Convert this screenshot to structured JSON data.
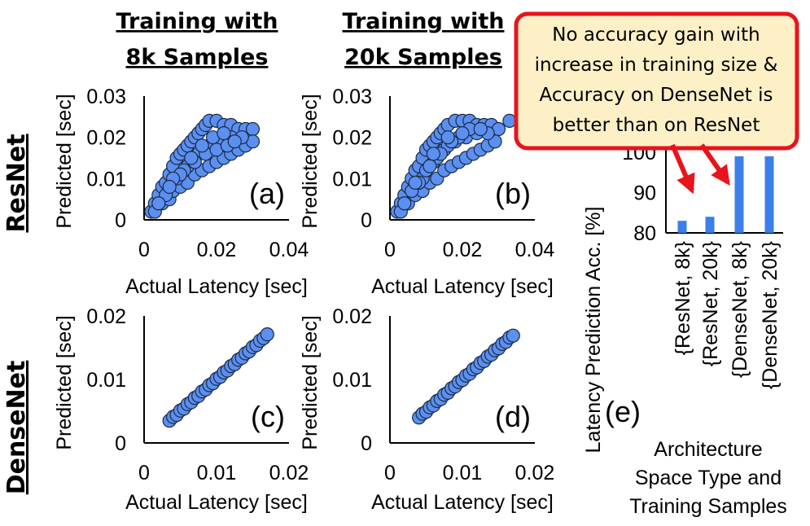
{
  "headers": {
    "col1": [
      "Training with",
      "8k Samples"
    ],
    "col2": [
      "Training with",
      "20k Samples"
    ]
  },
  "row_labels": [
    "ResNet",
    "DenseNet"
  ],
  "callout": {
    "lines": [
      "No accuracy gain with",
      "increase in training size &",
      "Accuracy on DenseNet is",
      "better than on ResNet"
    ],
    "border_color": "#e8141c",
    "fill_color": "#fdf0c7"
  },
  "colors": {
    "marker": "#5b8ff0",
    "bar": "#3d7fe8"
  },
  "chart_data": [
    {
      "type": "scatter",
      "panel": "(a)",
      "architecture": "ResNet",
      "training": "8k",
      "xlabel": "Actual Latency [sec]",
      "ylabel": "Predicted [sec]",
      "xlim": [
        0,
        0.04
      ],
      "ylim": [
        0,
        0.03
      ],
      "xticks": [
        "0",
        "0.02",
        "0.04"
      ],
      "xtick_values": [
        0,
        0.02,
        0.04
      ],
      "yticks": [
        "0",
        "0.01",
        "0.02",
        "0.03"
      ],
      "ytick_values": [
        0,
        0.01,
        0.02,
        0.03
      ],
      "points": [
        [
          0.002,
          0.002
        ],
        [
          0.003,
          0.004
        ],
        [
          0.004,
          0.006
        ],
        [
          0.005,
          0.008
        ],
        [
          0.006,
          0.009
        ],
        [
          0.007,
          0.011
        ],
        [
          0.008,
          0.013
        ],
        [
          0.009,
          0.015
        ],
        [
          0.01,
          0.016
        ],
        [
          0.011,
          0.017
        ],
        [
          0.012,
          0.018
        ],
        [
          0.013,
          0.019
        ],
        [
          0.014,
          0.02
        ],
        [
          0.015,
          0.021
        ],
        [
          0.016,
          0.022
        ],
        [
          0.017,
          0.023
        ],
        [
          0.018,
          0.024
        ],
        [
          0.02,
          0.024
        ],
        [
          0.022,
          0.023
        ],
        [
          0.024,
          0.023
        ],
        [
          0.026,
          0.022
        ],
        [
          0.028,
          0.022
        ],
        [
          0.03,
          0.022
        ],
        [
          0.003,
          0.002
        ],
        [
          0.005,
          0.004
        ],
        [
          0.007,
          0.005
        ],
        [
          0.008,
          0.007
        ],
        [
          0.01,
          0.008
        ],
        [
          0.012,
          0.009
        ],
        [
          0.014,
          0.011
        ],
        [
          0.016,
          0.012
        ],
        [
          0.018,
          0.013
        ],
        [
          0.02,
          0.014
        ],
        [
          0.022,
          0.015
        ],
        [
          0.024,
          0.016
        ],
        [
          0.026,
          0.017
        ],
        [
          0.028,
          0.018
        ],
        [
          0.03,
          0.019
        ],
        [
          0.006,
          0.006
        ],
        [
          0.009,
          0.01
        ],
        [
          0.012,
          0.013
        ],
        [
          0.015,
          0.016
        ],
        [
          0.018,
          0.018
        ],
        [
          0.021,
          0.019
        ],
        [
          0.024,
          0.02
        ],
        [
          0.027,
          0.02
        ],
        [
          0.011,
          0.012
        ],
        [
          0.014,
          0.014
        ],
        [
          0.017,
          0.016
        ],
        [
          0.02,
          0.017
        ],
        [
          0.023,
          0.018
        ],
        [
          0.013,
          0.015
        ],
        [
          0.016,
          0.018
        ],
        [
          0.019,
          0.02
        ],
        [
          0.022,
          0.021
        ],
        [
          0.025,
          0.019
        ],
        [
          0.01,
          0.011
        ],
        [
          0.008,
          0.01
        ],
        [
          0.007,
          0.008
        ],
        [
          0.004,
          0.004
        ]
      ]
    },
    {
      "type": "scatter",
      "panel": "(b)",
      "architecture": "ResNet",
      "training": "20k",
      "xlabel": "Actual Latency [sec]",
      "ylabel": "Predicted [sec]",
      "xlim": [
        0,
        0.04
      ],
      "ylim": [
        0,
        0.03
      ],
      "xticks": [
        "0",
        "0.02",
        "0.04"
      ],
      "xtick_values": [
        0,
        0.02,
        0.04
      ],
      "yticks": [
        "0",
        "0.01",
        "0.02",
        "0.03"
      ],
      "ytick_values": [
        0,
        0.01,
        0.02,
        0.03
      ],
      "points": [
        [
          0.002,
          0.002
        ],
        [
          0.003,
          0.004
        ],
        [
          0.004,
          0.006
        ],
        [
          0.005,
          0.008
        ],
        [
          0.006,
          0.01
        ],
        [
          0.007,
          0.012
        ],
        [
          0.008,
          0.013
        ],
        [
          0.009,
          0.015
        ],
        [
          0.01,
          0.017
        ],
        [
          0.011,
          0.018
        ],
        [
          0.012,
          0.019
        ],
        [
          0.013,
          0.02
        ],
        [
          0.014,
          0.021
        ],
        [
          0.015,
          0.022
        ],
        [
          0.016,
          0.023
        ],
        [
          0.018,
          0.024
        ],
        [
          0.02,
          0.024
        ],
        [
          0.022,
          0.024
        ],
        [
          0.024,
          0.023
        ],
        [
          0.026,
          0.023
        ],
        [
          0.028,
          0.023
        ],
        [
          0.03,
          0.022
        ],
        [
          0.033,
          0.024
        ],
        [
          0.003,
          0.002
        ],
        [
          0.005,
          0.004
        ],
        [
          0.007,
          0.006
        ],
        [
          0.009,
          0.007
        ],
        [
          0.011,
          0.009
        ],
        [
          0.013,
          0.01
        ],
        [
          0.015,
          0.012
        ],
        [
          0.017,
          0.013
        ],
        [
          0.019,
          0.014
        ],
        [
          0.021,
          0.015
        ],
        [
          0.023,
          0.016
        ],
        [
          0.025,
          0.017
        ],
        [
          0.027,
          0.018
        ],
        [
          0.029,
          0.019
        ],
        [
          0.006,
          0.007
        ],
        [
          0.009,
          0.01
        ],
        [
          0.012,
          0.014
        ],
        [
          0.015,
          0.017
        ],
        [
          0.018,
          0.019
        ],
        [
          0.021,
          0.02
        ],
        [
          0.024,
          0.021
        ],
        [
          0.027,
          0.021
        ],
        [
          0.01,
          0.012
        ],
        [
          0.013,
          0.015
        ],
        [
          0.016,
          0.018
        ],
        [
          0.019,
          0.02
        ],
        [
          0.022,
          0.022
        ],
        [
          0.025,
          0.022
        ],
        [
          0.008,
          0.009
        ],
        [
          0.011,
          0.013
        ],
        [
          0.014,
          0.016
        ],
        [
          0.017,
          0.019
        ],
        [
          0.02,
          0.021
        ],
        [
          0.004,
          0.004
        ],
        [
          0.007,
          0.009
        ],
        [
          0.012,
          0.016
        ],
        [
          0.016,
          0.02
        ]
      ]
    },
    {
      "type": "scatter",
      "panel": "(c)",
      "architecture": "DenseNet",
      "training": "8k",
      "xlabel": "Actual Latency [sec]",
      "ylabel": "Predicted [sec]",
      "xlim": [
        0,
        0.02
      ],
      "ylim": [
        0,
        0.02
      ],
      "xticks": [
        "0",
        "0.01",
        "0.02"
      ],
      "xtick_values": [
        0,
        0.01,
        0.02
      ],
      "yticks": [
        "0",
        "0.01",
        "0.02"
      ],
      "ytick_values": [
        0,
        0.01,
        0.02
      ],
      "points": [
        [
          0.0035,
          0.0035
        ],
        [
          0.004,
          0.0041
        ],
        [
          0.0045,
          0.0044
        ],
        [
          0.005,
          0.0051
        ],
        [
          0.0055,
          0.0054
        ],
        [
          0.006,
          0.0061
        ],
        [
          0.0065,
          0.0064
        ],
        [
          0.007,
          0.0071
        ],
        [
          0.0075,
          0.0074
        ],
        [
          0.008,
          0.0081
        ],
        [
          0.0085,
          0.0084
        ],
        [
          0.009,
          0.0091
        ],
        [
          0.0095,
          0.0094
        ],
        [
          0.01,
          0.0101
        ],
        [
          0.0105,
          0.0104
        ],
        [
          0.011,
          0.0111
        ],
        [
          0.0115,
          0.0114
        ],
        [
          0.012,
          0.0121
        ],
        [
          0.0125,
          0.0124
        ],
        [
          0.013,
          0.0131
        ],
        [
          0.0135,
          0.0134
        ],
        [
          0.014,
          0.0141
        ],
        [
          0.0145,
          0.0144
        ],
        [
          0.015,
          0.0151
        ],
        [
          0.0155,
          0.0154
        ],
        [
          0.016,
          0.0161
        ],
        [
          0.0165,
          0.0165
        ],
        [
          0.017,
          0.0171
        ]
      ]
    },
    {
      "type": "scatter",
      "panel": "(d)",
      "architecture": "DenseNet",
      "training": "20k",
      "xlabel": "Actual Latency [sec]",
      "ylabel": "Predicted [sec]",
      "xlim": [
        0,
        0.02
      ],
      "ylim": [
        0,
        0.02
      ],
      "xticks": [
        "0",
        "0.01",
        "0.02"
      ],
      "xtick_values": [
        0,
        0.01,
        0.02
      ],
      "yticks": [
        "0",
        "0.01",
        "0.02"
      ],
      "ytick_values": [
        0,
        0.01,
        0.02
      ],
      "points": [
        [
          0.004,
          0.004
        ],
        [
          0.0045,
          0.0046
        ],
        [
          0.005,
          0.0049
        ],
        [
          0.0055,
          0.0056
        ],
        [
          0.006,
          0.0059
        ],
        [
          0.0065,
          0.0066
        ],
        [
          0.007,
          0.0069
        ],
        [
          0.0075,
          0.0076
        ],
        [
          0.008,
          0.0079
        ],
        [
          0.0085,
          0.0086
        ],
        [
          0.009,
          0.0089
        ],
        [
          0.0095,
          0.0096
        ],
        [
          0.01,
          0.0099
        ],
        [
          0.0105,
          0.0106
        ],
        [
          0.011,
          0.0109
        ],
        [
          0.0115,
          0.0116
        ],
        [
          0.012,
          0.0119
        ],
        [
          0.0125,
          0.0126
        ],
        [
          0.013,
          0.0129
        ],
        [
          0.0135,
          0.0136
        ],
        [
          0.014,
          0.0139
        ],
        [
          0.0145,
          0.0146
        ],
        [
          0.015,
          0.0149
        ],
        [
          0.0155,
          0.0156
        ],
        [
          0.016,
          0.0159
        ],
        [
          0.0165,
          0.0166
        ],
        [
          0.017,
          0.0169
        ]
      ]
    },
    {
      "type": "bar",
      "panel": "(e)",
      "categories": [
        "{ResNet, 8k}",
        "{ResNet, 20k}",
        "{DenseNet, 8k}",
        "{DenseNet, 20k}"
      ],
      "values": [
        83,
        84,
        99,
        99
      ],
      "ylabel": "Latency Prediction Acc. [%]",
      "xlabel": [
        "Architecture",
        "Space Type and",
        "Training Samples"
      ],
      "ylim": [
        80,
        100
      ],
      "yticks": [
        "80",
        "90",
        "100"
      ],
      "ytick_values": [
        80,
        90,
        100
      ]
    }
  ]
}
